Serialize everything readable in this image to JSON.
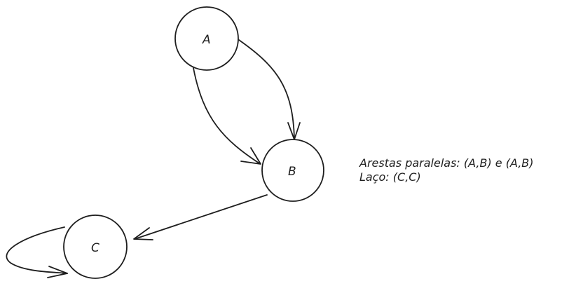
{
  "nodes": {
    "a": {
      "label": "A"
    },
    "b": {
      "label": "B"
    },
    "c": {
      "label": "C"
    }
  },
  "notes": {
    "parallel_edges": "Arestas paralelas: (A,B) e (A,B)",
    "loop": "Laço: (C,C)"
  },
  "colors": {
    "stroke": "#1e1e1e",
    "background": "#ffffff"
  }
}
